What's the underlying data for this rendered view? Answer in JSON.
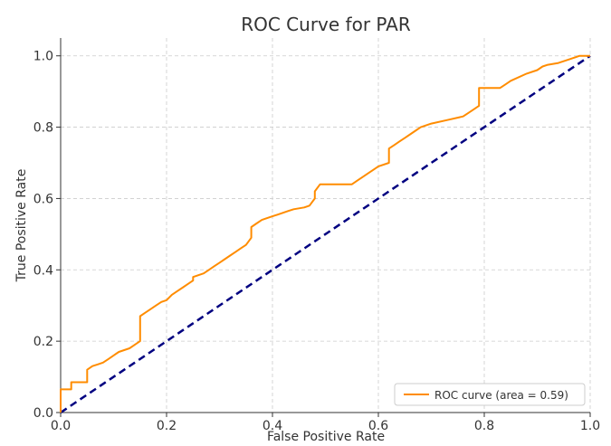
{
  "chart_data": {
    "type": "line",
    "title": "ROC Curve for PAR",
    "xlabel": "False Positive Rate",
    "ylabel": "True Positive Rate",
    "xlim": [
      0.0,
      1.0
    ],
    "ylim": [
      0.0,
      1.05
    ],
    "xticks": [
      "0.0",
      "0.2",
      "0.4",
      "0.6",
      "0.8",
      "1.0"
    ],
    "yticks": [
      "0.0",
      "0.2",
      "0.4",
      "0.6",
      "0.8",
      "1.0"
    ],
    "grid": true,
    "legend_position": "lower right",
    "series": [
      {
        "name": "ROC curve (area = 0.59)",
        "color": "#ff8c00",
        "style": "solid",
        "x": [
          0.0,
          0.0,
          0.02,
          0.02,
          0.05,
          0.05,
          0.06,
          0.07,
          0.08,
          0.09,
          0.1,
          0.11,
          0.12,
          0.13,
          0.14,
          0.15,
          0.15,
          0.15,
          0.16,
          0.17,
          0.18,
          0.19,
          0.2,
          0.21,
          0.22,
          0.23,
          0.24,
          0.25,
          0.25,
          0.27,
          0.28,
          0.29,
          0.3,
          0.31,
          0.32,
          0.33,
          0.34,
          0.35,
          0.36,
          0.36,
          0.37,
          0.38,
          0.39,
          0.4,
          0.41,
          0.42,
          0.43,
          0.44,
          0.46,
          0.47,
          0.48,
          0.48,
          0.49,
          0.5,
          0.52,
          0.55,
          0.56,
          0.57,
          0.58,
          0.59,
          0.6,
          0.62,
          0.62,
          0.62,
          0.63,
          0.64,
          0.65,
          0.66,
          0.67,
          0.68,
          0.7,
          0.73,
          0.76,
          0.77,
          0.78,
          0.79,
          0.79,
          0.83,
          0.84,
          0.85,
          0.88,
          0.9,
          0.91,
          0.92,
          0.94,
          0.96,
          0.98,
          1.0
        ],
        "y": [
          0.0,
          0.065,
          0.065,
          0.085,
          0.085,
          0.12,
          0.13,
          0.135,
          0.14,
          0.15,
          0.16,
          0.17,
          0.175,
          0.18,
          0.19,
          0.2,
          0.21,
          0.27,
          0.28,
          0.29,
          0.3,
          0.31,
          0.315,
          0.33,
          0.34,
          0.35,
          0.36,
          0.37,
          0.38,
          0.39,
          0.4,
          0.41,
          0.42,
          0.43,
          0.44,
          0.45,
          0.46,
          0.47,
          0.49,
          0.52,
          0.53,
          0.54,
          0.545,
          0.55,
          0.555,
          0.56,
          0.565,
          0.57,
          0.575,
          0.58,
          0.6,
          0.62,
          0.64,
          0.64,
          0.64,
          0.64,
          0.65,
          0.66,
          0.67,
          0.68,
          0.69,
          0.7,
          0.7,
          0.74,
          0.75,
          0.76,
          0.77,
          0.78,
          0.79,
          0.8,
          0.81,
          0.82,
          0.83,
          0.84,
          0.85,
          0.86,
          0.91,
          0.91,
          0.92,
          0.93,
          0.95,
          0.96,
          0.97,
          0.975,
          0.98,
          0.99,
          1.0,
          1.0
        ]
      },
      {
        "color": "#000080",
        "style": "dashed",
        "x": [
          0.0,
          1.0
        ],
        "y": [
          0.0,
          1.0
        ]
      }
    ]
  }
}
